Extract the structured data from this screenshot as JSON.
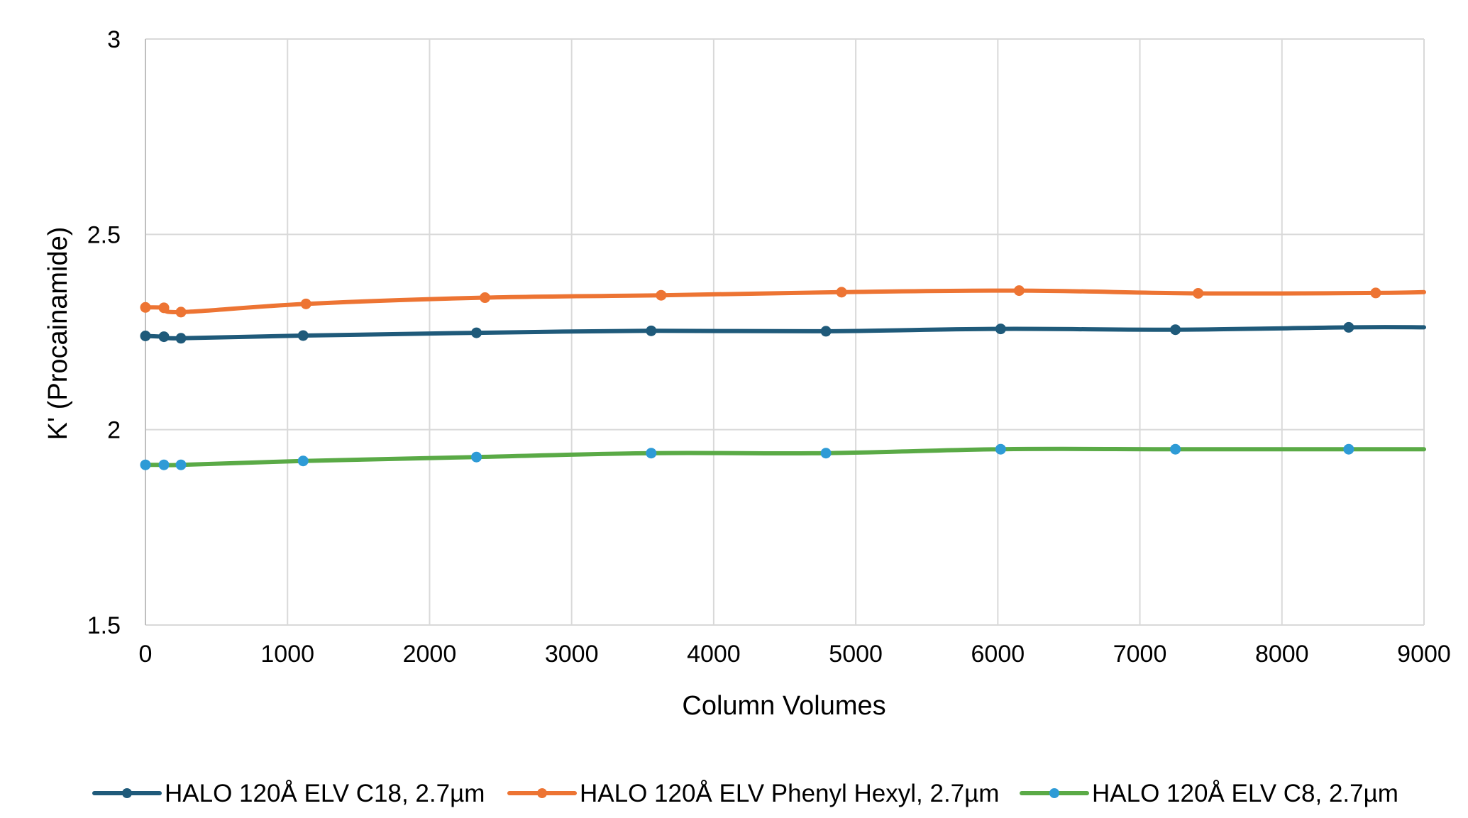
{
  "chart_data": {
    "type": "line",
    "xlabel": "Column Volumes",
    "ylabel": "K' (Procainamide)",
    "xlim": [
      0,
      9000
    ],
    "ylim": [
      1.5,
      3
    ],
    "xticks": [
      "0",
      "1000",
      "2000",
      "3000",
      "4000",
      "5000",
      "6000",
      "7000",
      "8000",
      "9000"
    ],
    "yticks": [
      "1.5",
      "2",
      "2.5",
      "3"
    ],
    "grid": true,
    "legend": "bottom",
    "series": [
      {
        "name": "HALO 120Å ELV C18, 2.7µm",
        "color": "#1f5a7a",
        "marker_color": "#1f5a7a",
        "x": [
          0,
          130,
          250,
          1110,
          2330,
          3560,
          4790,
          6020,
          7250,
          8470,
          9000
        ],
        "y": [
          2.24,
          2.238,
          2.234,
          2.241,
          2.248,
          2.253,
          2.252,
          2.258,
          2.256,
          2.262,
          2.262
        ],
        "markers": [
          true,
          true,
          true,
          true,
          true,
          true,
          true,
          true,
          true,
          true,
          false
        ]
      },
      {
        "name": "HALO 120Å ELV Phenyl Hexyl, 2.7µm",
        "color": "#ed7433",
        "marker_color": "#ed7433",
        "x": [
          0,
          130,
          250,
          1130,
          2390,
          3630,
          4900,
          6150,
          7410,
          8660,
          9000
        ],
        "y": [
          2.313,
          2.312,
          2.301,
          2.322,
          2.338,
          2.344,
          2.352,
          2.356,
          2.349,
          2.35,
          2.352
        ],
        "markers": [
          true,
          true,
          true,
          true,
          true,
          true,
          true,
          true,
          true,
          true,
          false
        ]
      },
      {
        "name": "HALO 120Å ELV C8, 2.7µm",
        "color": "#5aaa46",
        "marker_color": "#2e9bd6",
        "x": [
          0,
          130,
          250,
          1110,
          2330,
          3560,
          4790,
          6020,
          7250,
          8470,
          9000
        ],
        "y": [
          1.91,
          1.91,
          1.91,
          1.92,
          1.93,
          1.94,
          1.94,
          1.95,
          1.95,
          1.95,
          1.95
        ],
        "markers": [
          true,
          true,
          true,
          true,
          true,
          true,
          true,
          true,
          true,
          true,
          false
        ]
      }
    ]
  }
}
